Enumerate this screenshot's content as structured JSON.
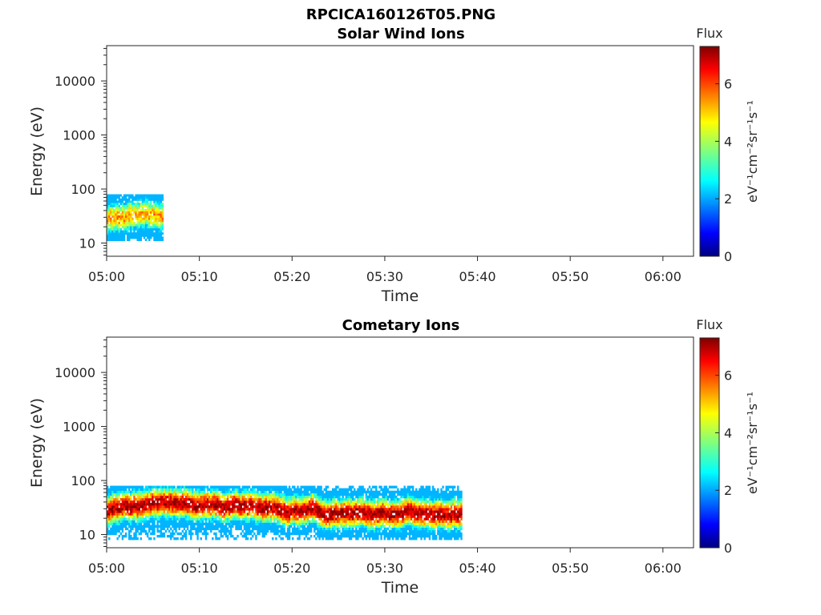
{
  "figure_title": "RPCICA160126T05.PNG",
  "colors": {
    "axis": "#262626",
    "colormap": [
      "#00007f",
      "#0000ff",
      "#007fff",
      "#00ffff",
      "#7fff7f",
      "#ffff00",
      "#ff7f00",
      "#ff0000",
      "#7f0000"
    ]
  },
  "chart_data": [
    {
      "type": "heatmap",
      "title": "Solar Wind Ions",
      "xlabel": "Time",
      "ylabel": "Energy (eV)",
      "x_ticks": [
        "05:00",
        "05:10",
        "05:20",
        "05:30",
        "05:40",
        "05:50",
        "06:00"
      ],
      "x_range_minutes": [
        0,
        63.3
      ],
      "y_scale": "log",
      "y_ticks": [
        10,
        100,
        1000,
        10000
      ],
      "y_tick_labels": [
        "10",
        "100",
        "1000",
        "10000"
      ],
      "ylim": [
        5.7,
        45000
      ],
      "colorbar": {
        "title": "Flux",
        "unit": "eV⁻¹cm⁻²sr⁻¹s⁻¹",
        "ticks": [
          "0",
          "2",
          "4",
          "6"
        ],
        "range": [
          0,
          7.3
        ]
      },
      "data_region": {
        "t_start_min": 0,
        "t_end_min": 6.1,
        "e_center_ev": 27,
        "e_min_ev": 11,
        "e_max_ev": 80,
        "peak_flux": 5.3
      }
    },
    {
      "type": "heatmap",
      "title": "Cometary Ions",
      "xlabel": "Time",
      "ylabel": "Energy (eV)",
      "x_ticks": [
        "05:00",
        "05:10",
        "05:20",
        "05:30",
        "05:40",
        "05:50",
        "06:00"
      ],
      "x_range_minutes": [
        0,
        63.3
      ],
      "y_scale": "log",
      "y_ticks": [
        10,
        100,
        1000,
        10000
      ],
      "y_tick_labels": [
        "10",
        "100",
        "1000",
        "10000"
      ],
      "ylim": [
        5.7,
        45000
      ],
      "colorbar": {
        "title": "Flux",
        "unit": "eV⁻¹cm⁻²sr⁻¹s⁻¹",
        "ticks": [
          "0",
          "2",
          "4",
          "6"
        ],
        "range": [
          0,
          7.3
        ]
      },
      "data_region": {
        "t_start_min": 0,
        "t_end_min": 38.3,
        "e_center_ev": 30,
        "e_min_ev": 8,
        "e_max_ev": 80,
        "peak_flux": 7.0
      }
    }
  ]
}
